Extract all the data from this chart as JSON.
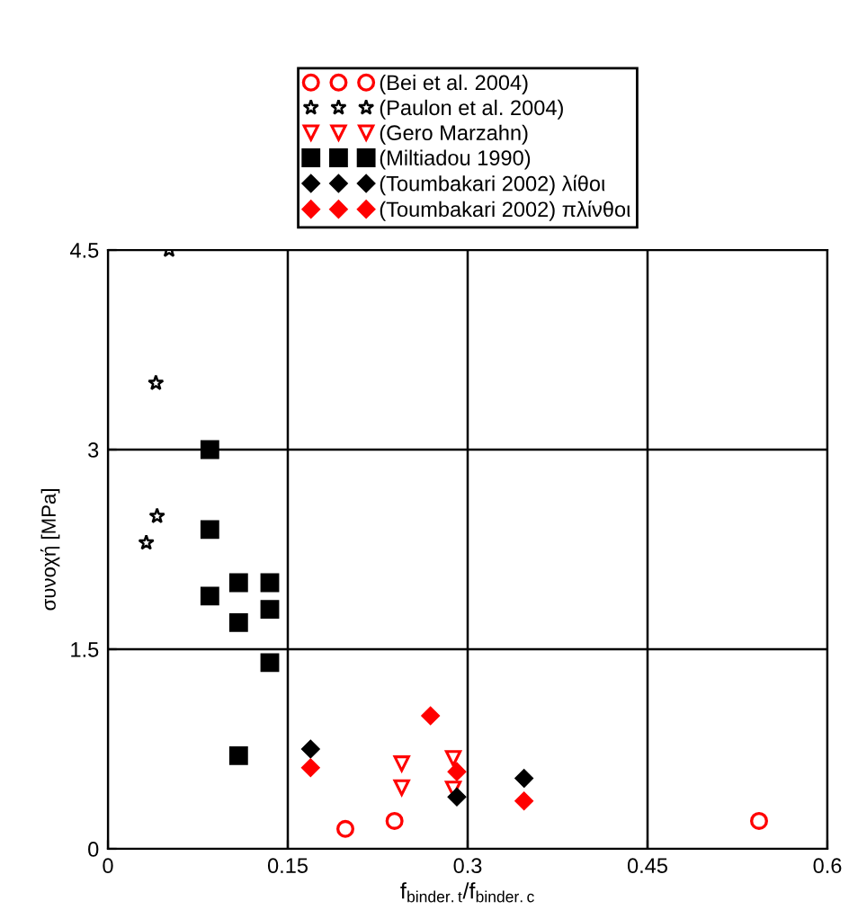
{
  "chart_data": {
    "type": "scatter",
    "xlabel": "f$_{binder.t}$/f$_{binder.c}$",
    "ylabel": "συνοχή [MPa]",
    "xlim": [
      0,
      0.6
    ],
    "xticks": [
      0,
      0.15,
      0.3,
      0.45,
      0.6
    ],
    "ylim": [
      0,
      4.5
    ],
    "yticks": [
      0,
      1.5,
      3,
      4.5
    ],
    "grid": true,
    "legend": "top",
    "series": [
      {
        "name": "(Bei et al. 2004)",
        "color": "#ff0000",
        "marker": "circle",
        "x": [
          0.198,
          0.239,
          0.543
        ],
        "values": [
          0.15,
          0.21,
          0.21
        ]
      },
      {
        "name": "(Paulon et al. 2004)",
        "color": "#000000",
        "marker": "star",
        "x": [
          0.051,
          0.04,
          0.041,
          0.032
        ],
        "values": [
          4.5,
          3.5,
          2.5,
          2.3
        ]
      },
      {
        "name": "(Gero Marzahn)",
        "color": "#ff0000",
        "marker": "triangle",
        "x": [
          0.245,
          0.245,
          0.288,
          0.288
        ],
        "values": [
          0.64,
          0.46,
          0.68,
          0.45
        ]
      },
      {
        "name": "(Miltiadou 1990)",
        "color": "#000000",
        "marker": "square",
        "x": [
          0.085,
          0.085,
          0.085,
          0.109,
          0.135,
          0.109,
          0.135,
          0.135,
          0.109
        ],
        "values": [
          3.0,
          2.4,
          1.9,
          2.0,
          2.0,
          1.7,
          1.8,
          1.4,
          0.7
        ]
      },
      {
        "name": "(Toumbakari 2002) λίθοι",
        "color": "#000000",
        "marker": "diamond",
        "x": [
          0.169,
          0.291,
          0.347
        ],
        "values": [
          0.75,
          0.39,
          0.53
        ]
      },
      {
        "name": "(Toumbakari 2002) πλίνθοι",
        "color": "#ff0000",
        "marker": "diamond",
        "x": [
          0.169,
          0.269,
          0.291,
          0.347
        ],
        "values": [
          0.61,
          1.0,
          0.58,
          0.36
        ]
      }
    ]
  }
}
